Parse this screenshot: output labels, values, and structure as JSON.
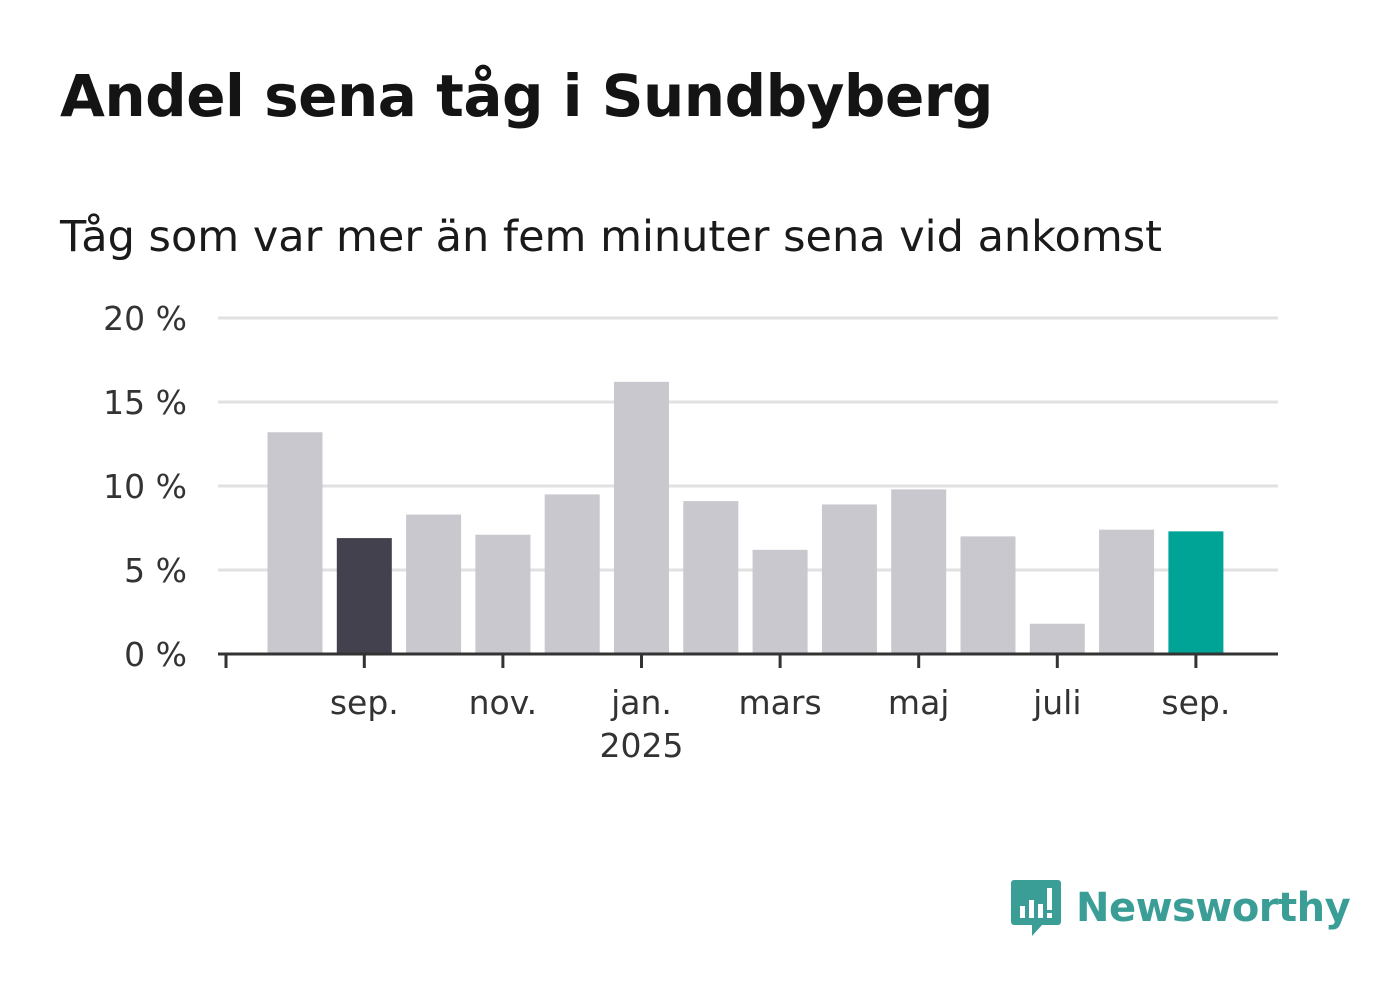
{
  "title": "Andel sena tåg i Sundbyberg",
  "subtitle": "Tåg som var mer än fem minuter sena vid ankomst",
  "brand": {
    "name": "Newsworthy",
    "color": "#3a9e97",
    "icon": "newsworthy-logo-icon"
  },
  "colors": {
    "bar_default": "#c8c8ce",
    "bar_previous_year": "#42414d",
    "bar_latest": "#00a497",
    "grid": "#e1e1e1",
    "axis": "#333333"
  },
  "chart_data": {
    "type": "bar",
    "title": "Andel sena tåg i Sundbyberg",
    "subtitle": "Tåg som var mer än fem minuter sena vid ankomst",
    "months": [
      "2024-08",
      "2024-09",
      "2024-10",
      "2024-11",
      "2024-12",
      "2025-01",
      "2025-02",
      "2025-03",
      "2025-04",
      "2025-05",
      "2025-06",
      "2025-07",
      "2025-08",
      "2025-09"
    ],
    "values": [
      13.2,
      6.9,
      8.3,
      7.1,
      9.5,
      16.2,
      9.1,
      6.2,
      8.9,
      9.8,
      7.0,
      1.8,
      7.4,
      7.3
    ],
    "highlight": {
      "previous_year_index": 1,
      "latest_index": 13
    },
    "ylim": [
      0,
      20
    ],
    "yticks": [
      {
        "value": 0,
        "label": "0 %"
      },
      {
        "value": 5,
        "label": "5 %"
      },
      {
        "value": 10,
        "label": "10 %"
      },
      {
        "value": 15,
        "label": "15 %"
      },
      {
        "value": 20,
        "label": "20 %"
      }
    ],
    "xticks": [
      {
        "index": 1,
        "label": "sep.",
        "sublabel": ""
      },
      {
        "index": 3,
        "label": "nov.",
        "sublabel": ""
      },
      {
        "index": 5,
        "label": "jan.",
        "sublabel": "2025"
      },
      {
        "index": 7,
        "label": "mars",
        "sublabel": ""
      },
      {
        "index": 9,
        "label": "maj",
        "sublabel": ""
      },
      {
        "index": 11,
        "label": "juli",
        "sublabel": ""
      },
      {
        "index": 13,
        "label": "sep.",
        "sublabel": ""
      }
    ],
    "xlabel": "",
    "ylabel": "",
    "grid": true,
    "legend": "none"
  }
}
